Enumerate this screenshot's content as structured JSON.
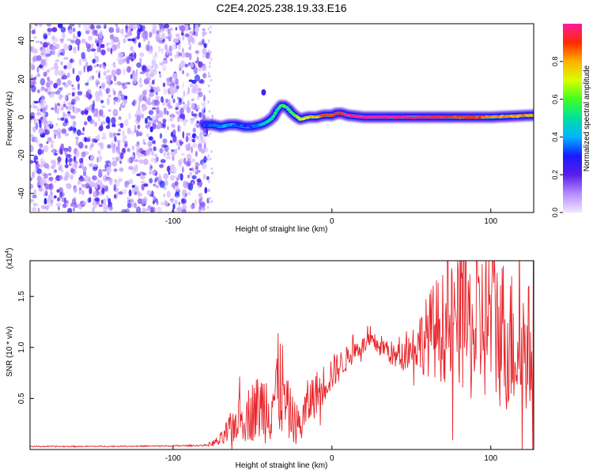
{
  "chart_data": [
    {
      "type": "heatmap",
      "title": "C2E4.2025.238.19.33.E16",
      "xlabel": "Height of straight line (km)",
      "ylabel": "Frequency (Hz)",
      "xlim": [
        -190,
        127
      ],
      "ylim": [
        -50,
        49
      ],
      "x_ticks": [
        -100,
        0,
        100
      ],
      "x_tick_labels": [
        "-100",
        "0",
        "100"
      ],
      "y_ticks": [
        -40,
        -20,
        0,
        20,
        40
      ],
      "y_tick_labels": [
        "-40",
        "-20",
        "0",
        "20",
        "40"
      ],
      "colorbar": {
        "label": "Normalized spectral amplitude",
        "range": [
          0,
          1
        ],
        "ticks": [
          0.0,
          0.2,
          0.4,
          0.6,
          0.8
        ],
        "tick_labels": [
          "0.0",
          "0.2",
          "0.4",
          "0.6",
          "0.8"
        ]
      },
      "noise_region_x": [
        -190,
        -78
      ],
      "ridge": {
        "x": [
          -80,
          -75,
          -70,
          -65,
          -60,
          -55,
          -50,
          -45,
          -42,
          -40,
          -37,
          -35,
          -32,
          -30,
          -27,
          -25,
          -22,
          -20,
          -15,
          -10,
          -5,
          0,
          3,
          6,
          10,
          20,
          40,
          60,
          80,
          100,
          127
        ],
        "freq": [
          -4,
          -4,
          -5,
          -4,
          -4,
          -5,
          -5,
          -4,
          -3,
          -2,
          0,
          3,
          6,
          6,
          4,
          2,
          0,
          -1,
          0,
          0,
          1,
          1,
          2,
          2,
          1,
          0,
          0,
          0,
          0,
          0,
          1
        ],
        "amplitude": [
          0.3,
          0.35,
          0.4,
          0.4,
          0.35,
          0.3,
          0.35,
          0.4,
          0.45,
          0.5,
          0.55,
          0.5,
          0.55,
          0.6,
          0.55,
          0.6,
          0.65,
          0.7,
          0.75,
          0.8,
          0.85,
          0.9,
          0.95,
          0.9,
          1.0,
          1.0,
          1.0,
          0.95,
          0.9,
          0.85,
          0.8
        ]
      }
    },
    {
      "type": "line",
      "xlabel": "Height of straight line (km)",
      "ylabel": "SNR (10 * v/v)",
      "y_multiplier": "(x10",
      "y_multiplier_exp": "4",
      "y_multiplier_close": ")",
      "xlim": [
        -190,
        127
      ],
      "ylim": [
        0,
        18500
      ],
      "x_ticks": [
        -100,
        0,
        100
      ],
      "x_tick_labels": [
        "-100",
        "0",
        "100"
      ],
      "y_ticks": [
        5000,
        10000,
        15000
      ],
      "y_tick_labels": [
        "0.5",
        "1.0",
        "1.5"
      ],
      "series": [
        {
          "name": "SNR",
          "color": "#e8242a",
          "x": [
            -190,
            -160,
            -130,
            -100,
            -80,
            -75,
            -70,
            -65,
            -60,
            -55,
            -50,
            -45,
            -40,
            -35,
            -32,
            -30,
            -28,
            -25,
            -22,
            -20,
            -15,
            -10,
            -5,
            0,
            5,
            10,
            15,
            20,
            25,
            30,
            35,
            40,
            45,
            50,
            55,
            60,
            65,
            70,
            75,
            80,
            85,
            90,
            95,
            100,
            105,
            110,
            115,
            120,
            127
          ],
          "env": [
            300,
            300,
            320,
            350,
            400,
            600,
            900,
            1800,
            2800,
            3200,
            3800,
            4200,
            4500,
            5500,
            7000,
            4500,
            4000,
            3000,
            2500,
            2200,
            4500,
            5500,
            6500,
            7500,
            8200,
            9000,
            9800,
            10200,
            10500,
            10200,
            9800,
            9000,
            9200,
            10000,
            10500,
            11200,
            11800,
            12000,
            12200,
            12500,
            12000,
            11500,
            12500,
            13000,
            12000,
            11000,
            10500,
            10000,
            10000
          ],
          "amp": [
            60,
            60,
            60,
            70,
            80,
            300,
            700,
            1500,
            2000,
            2500,
            3000,
            3500,
            4000,
            5000,
            6000,
            3500,
            3000,
            2500,
            2000,
            2000,
            2500,
            2200,
            2000,
            1800,
            1500,
            1200,
            1000,
            900,
            900,
            1100,
            1200,
            1300,
            1500,
            2000,
            3000,
            4000,
            5000,
            5500,
            6000,
            6500,
            7000,
            7500,
            8000,
            8500,
            8000,
            7500,
            7000,
            6500,
            6500
          ]
        }
      ]
    }
  ]
}
